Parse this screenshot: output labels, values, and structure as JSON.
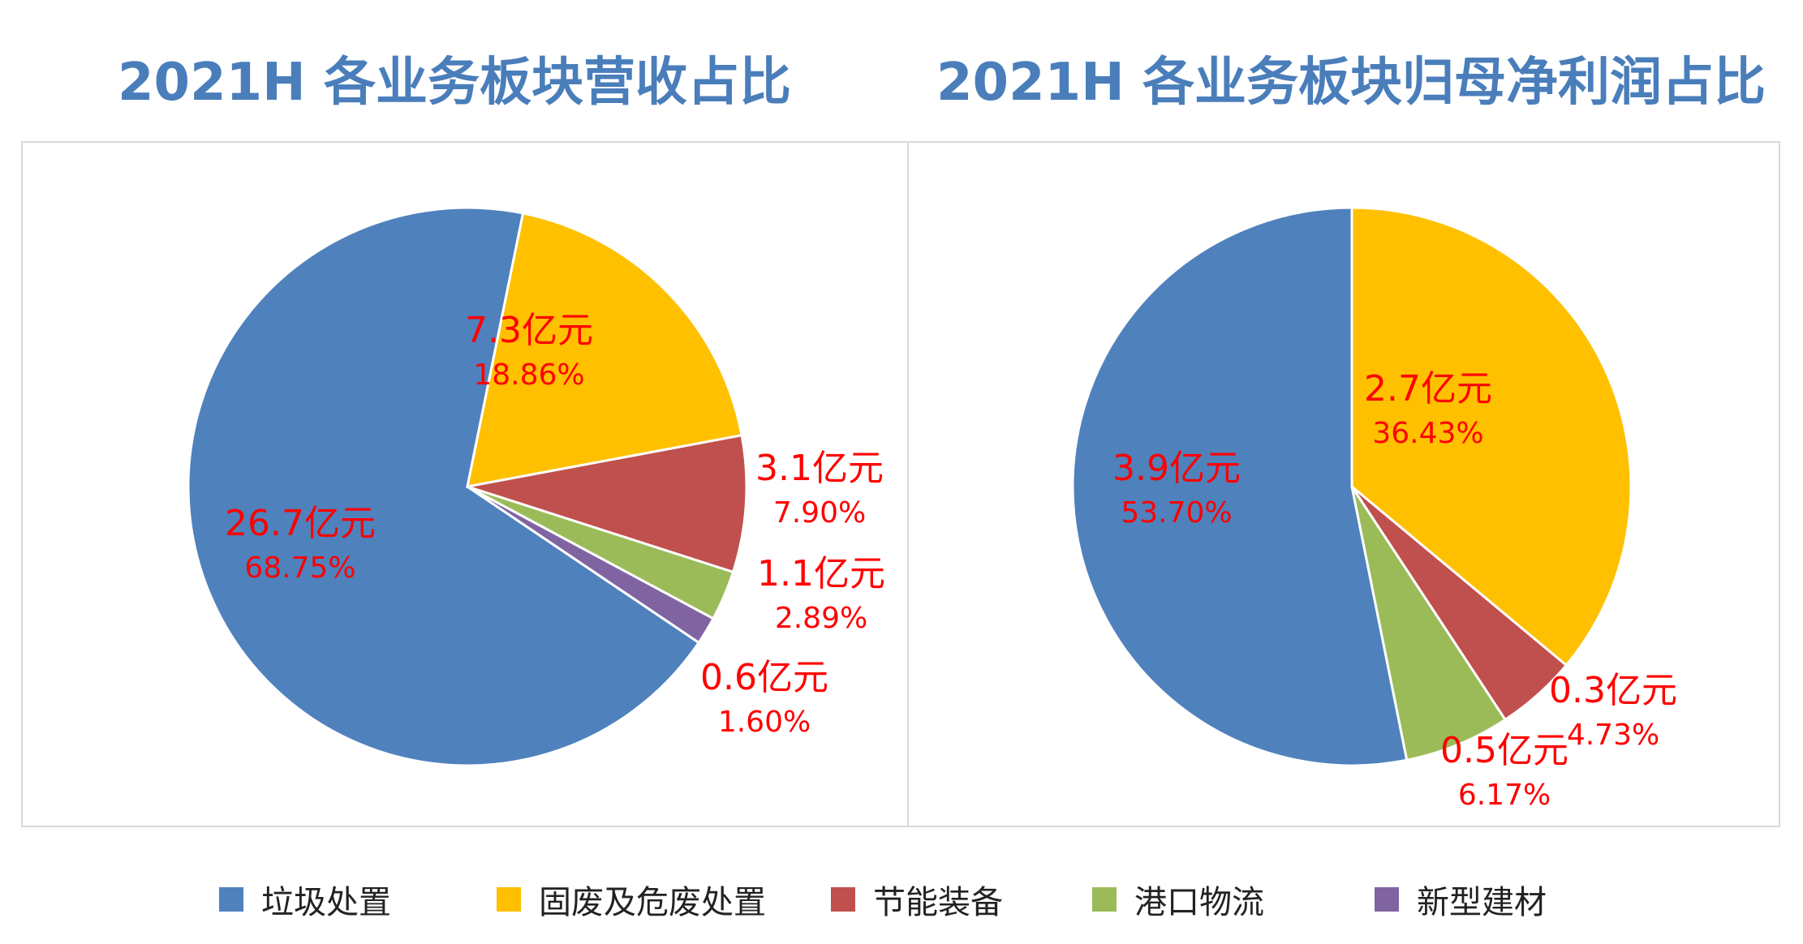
{
  "legend": [
    {
      "name": "垃圾处置",
      "color": "#4f81bd"
    },
    {
      "name": "固废及危废处置",
      "color": "#ffc000"
    },
    {
      "name": "节能装备",
      "color": "#c0504d"
    },
    {
      "name": "港口物流",
      "color": "#9bbb59"
    },
    {
      "name": "新型建材",
      "color": "#8064a2"
    }
  ],
  "chart_data": [
    {
      "type": "pie",
      "title": "2021H 各业务板块营收占比",
      "slices": [
        {
          "name": "垃圾处置",
          "value": 68.75,
          "amount": "26.7亿元",
          "percent": "68.75%"
        },
        {
          "name": "固废及危废处置",
          "value": 18.86,
          "amount": "7.3亿元",
          "percent": "18.86%"
        },
        {
          "name": "节能装备",
          "value": 7.9,
          "amount": "3.1亿元",
          "percent": "7.90%"
        },
        {
          "name": "港口物流",
          "value": 2.89,
          "amount": "1.1亿元",
          "percent": "2.89%"
        },
        {
          "name": "新型建材",
          "value": 1.6,
          "amount": "0.6亿元",
          "percent": "1.60%"
        }
      ],
      "legend_position": "bottom"
    },
    {
      "type": "pie",
      "title": "2021H 各业务板块归母净利润占比",
      "slices": [
        {
          "name": "垃圾处置",
          "value": 53.7,
          "amount": "3.9亿元",
          "percent": "53.70%"
        },
        {
          "name": "固废及危废处置",
          "value": 36.43,
          "amount": "2.7亿元",
          "percent": "36.43%"
        },
        {
          "name": "节能装备",
          "value": 4.73,
          "amount": "0.3亿元",
          "percent": "4.73%"
        },
        {
          "name": "港口物流",
          "value": 6.17,
          "amount": "0.5亿元",
          "percent": "6.17%"
        }
      ],
      "legend_position": "bottom"
    }
  ]
}
